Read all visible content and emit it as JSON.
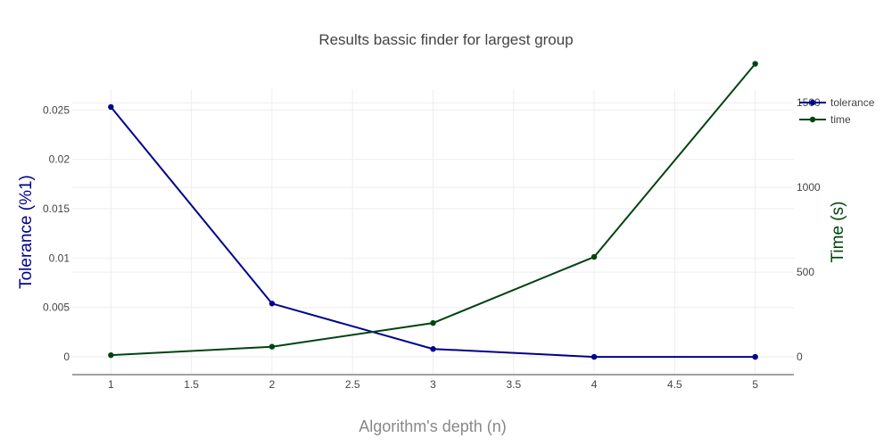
{
  "chart_data": {
    "type": "line",
    "title": "Results bassic finder for largest group",
    "xlabel": "Algorithm's depth (n)",
    "ylabel_left": "Tolerance (%1)",
    "ylabel_right": "Time (s)",
    "x": [
      1,
      2,
      3,
      4,
      5
    ],
    "x_ticks": [
      "1",
      "1.5",
      "2",
      "2.5",
      "3",
      "3.5",
      "4",
      "4.5",
      "5"
    ],
    "y_left_ticks": [
      "0",
      "0.005",
      "0.01",
      "0.015",
      "0.02",
      "0.025"
    ],
    "y_right_ticks": [
      "0",
      "500",
      "1000",
      "1500"
    ],
    "xlim": [
      0.76,
      5.24
    ],
    "ylim_left": [
      -0.0018,
      0.0271
    ],
    "ylim_right": [
      -105,
      1580
    ],
    "legend_position": "top-right",
    "grid": true,
    "series": [
      {
        "name": "tolerance",
        "axis": "left",
        "color": "#00008b",
        "values": [
          0.0253,
          0.0054,
          0.0008,
          0.0,
          0.0
        ]
      },
      {
        "name": "time",
        "axis": "right",
        "color": "#004411",
        "values": [
          10,
          60,
          200,
          590,
          1730
        ]
      }
    ],
    "left_label_color": "#00008b",
    "right_label_color": "#004411"
  }
}
